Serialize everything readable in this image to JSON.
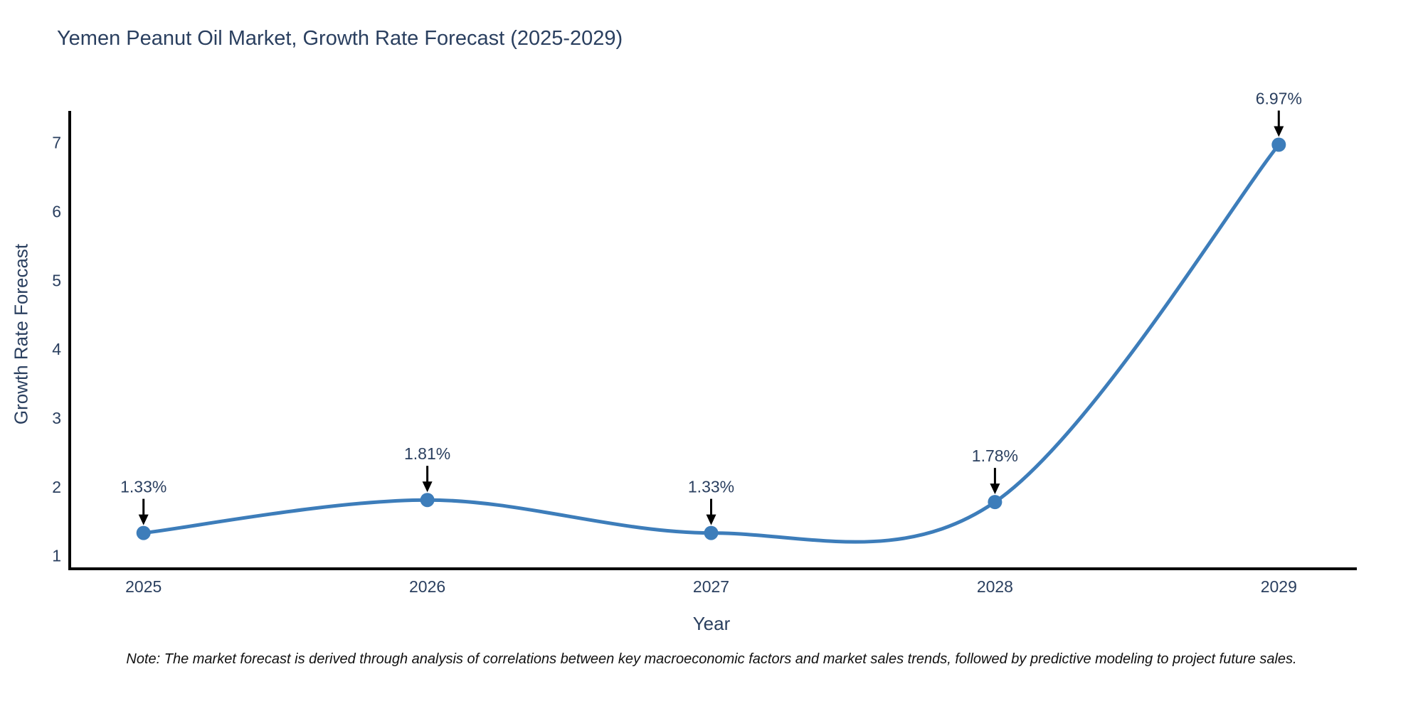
{
  "footer": {
    "note": "Note: The market forecast is derived through analysis of correlations between key macroeconomic factors and market sales trends, followed by predictive modeling to project future sales."
  },
  "chart_data": {
    "type": "line",
    "title": "Yemen Peanut Oil Market, Growth Rate Forecast (2025-2029)",
    "xlabel": "Year",
    "ylabel": "Growth Rate Forecast",
    "x": [
      2025,
      2026,
      2027,
      2028,
      2029
    ],
    "values": [
      1.33,
      1.81,
      1.33,
      1.78,
      6.97
    ],
    "point_labels": [
      "1.33%",
      "1.81%",
      "1.33%",
      "1.78%",
      "6.97%"
    ],
    "yticks": [
      1,
      2,
      3,
      4,
      5,
      6,
      7
    ],
    "xticks": [
      2025,
      2026,
      2027,
      2028,
      2029
    ],
    "xlim": [
      2024.74,
      2029.27
    ],
    "ylim": [
      0.81,
      7.44
    ],
    "grid": false,
    "legend": "none",
    "line_shape": "spline",
    "line_color": "#3d7dba",
    "marker_color": "#3d7dba",
    "axis_color": "#000000",
    "tick_color": "#2a3f5f",
    "annotation_text_color": "#2a3f5f",
    "annotation_arrow_color": "#000000"
  }
}
